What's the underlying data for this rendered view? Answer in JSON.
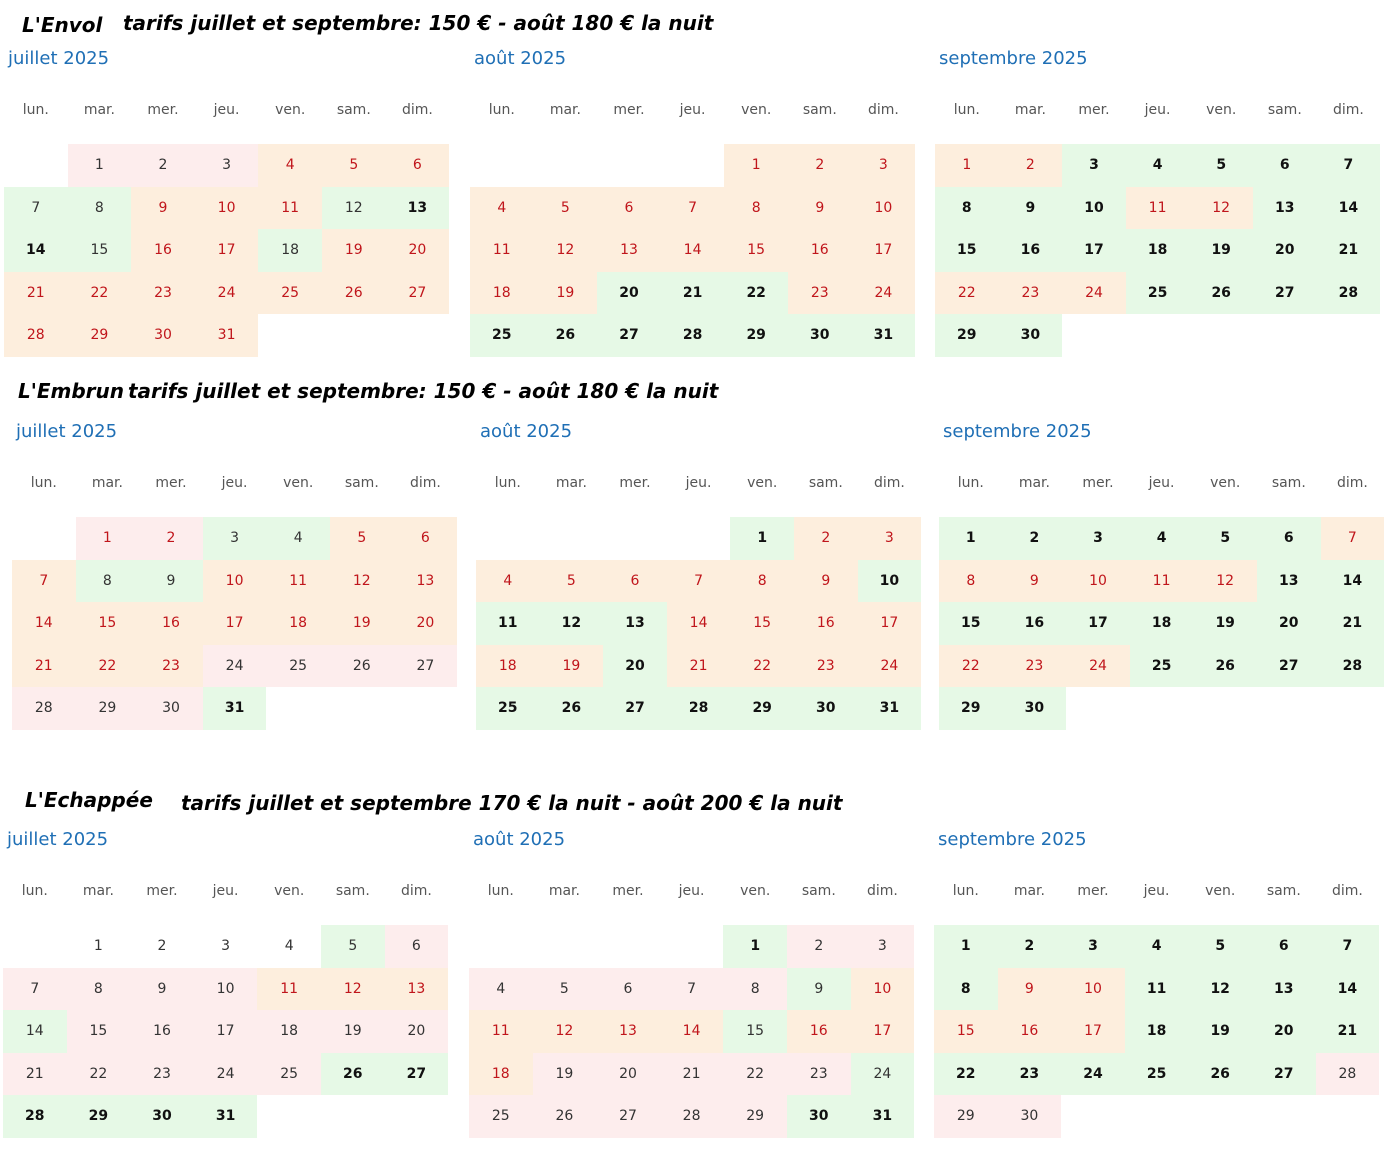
{
  "colors": {
    "green": "#e6f9e6",
    "orange": "#fdeedd",
    "pink": "#fdeded",
    "title_blue": "#1f6fb5",
    "red_text": "#c0151b"
  },
  "weekdays": [
    "lun.",
    "mar.",
    "mer.",
    "jeu.",
    "ven.",
    "sam.",
    "dim."
  ],
  "legend": {
    "g": "green-bold",
    "o": "orange-red",
    "p": "pink",
    "lg": "green-normal",
    "w": "white",
    "rp": "pink-red"
  },
  "properties": [
    {
      "name": "L'Envol",
      "tariff": "tarifs juillet et septembre: 150 € - août 180 € la nuit",
      "months": [
        {
          "title": "juillet 2025",
          "offset": 1,
          "days": 31,
          "states": [
            "p",
            "p",
            "p",
            "o",
            "o",
            "o",
            "lg",
            "lg",
            "o",
            "o",
            "o",
            "lg",
            "g",
            "g",
            "lg",
            "o",
            "o",
            "lg",
            "o",
            "o",
            "o",
            "o",
            "o",
            "o",
            "o",
            "o",
            "o",
            "o",
            "o",
            "o",
            "o"
          ]
        },
        {
          "title": "août 2025",
          "offset": 4,
          "days": 31,
          "states": [
            "o",
            "o",
            "o",
            "o",
            "o",
            "o",
            "o",
            "o",
            "o",
            "o",
            "o",
            "o",
            "o",
            "o",
            "o",
            "o",
            "o",
            "o",
            "o",
            "g",
            "g",
            "g",
            "o",
            "o",
            "g",
            "g",
            "g",
            "g",
            "g",
            "g",
            "g"
          ]
        },
        {
          "title": "septembre 2025",
          "offset": 0,
          "days": 30,
          "states": [
            "o",
            "o",
            "g",
            "g",
            "g",
            "g",
            "g",
            "g",
            "g",
            "g",
            "o",
            "o",
            "g",
            "g",
            "g",
            "g",
            "g",
            "g",
            "g",
            "g",
            "g",
            "o",
            "o",
            "o",
            "g",
            "g",
            "g",
            "g",
            "g",
            "g"
          ]
        }
      ]
    },
    {
      "name": "L'Embrun",
      "tariff": "tarifs juillet et septembre: 150 € - août 180 € la nuit",
      "months": [
        {
          "title": "juillet 2025",
          "offset": 1,
          "days": 31,
          "states": [
            "rp",
            "rp",
            "lg",
            "lg",
            "o",
            "o",
            "o",
            "lg",
            "lg",
            "o",
            "o",
            "o",
            "o",
            "o",
            "o",
            "o",
            "o",
            "o",
            "o",
            "o",
            "o",
            "o",
            "o",
            "p",
            "p",
            "p",
            "p",
            "p",
            "p",
            "p",
            "g"
          ]
        },
        {
          "title": "août 2025",
          "offset": 4,
          "days": 31,
          "states": [
            "g",
            "o",
            "o",
            "o",
            "o",
            "o",
            "o",
            "o",
            "o",
            "g",
            "g",
            "g",
            "g",
            "o",
            "o",
            "o",
            "o",
            "o",
            "o",
            "g",
            "o",
            "o",
            "o",
            "o",
            "g",
            "g",
            "g",
            "g",
            "g",
            "g",
            "g"
          ]
        },
        {
          "title": "septembre 2025",
          "offset": 0,
          "days": 30,
          "states": [
            "g",
            "g",
            "g",
            "g",
            "g",
            "g",
            "o",
            "o",
            "o",
            "o",
            "o",
            "o",
            "g",
            "g",
            "g",
            "g",
            "g",
            "g",
            "g",
            "g",
            "g",
            "o",
            "o",
            "o",
            "g",
            "g",
            "g",
            "g",
            "g",
            "g"
          ]
        }
      ]
    },
    {
      "name": "L'Echappée",
      "tariff": "tarifs juillet et septembre 170 € la nuit - août 200 € la nuit",
      "months": [
        {
          "title": "juillet 2025",
          "offset": 1,
          "days": 31,
          "states": [
            "w",
            "w",
            "w",
            "w",
            "lg",
            "p",
            "p",
            "p",
            "p",
            "p",
            "o",
            "o",
            "o",
            "lg",
            "p",
            "p",
            "p",
            "p",
            "p",
            "p",
            "p",
            "p",
            "p",
            "p",
            "p",
            "g",
            "g",
            "g",
            "g",
            "g",
            "g"
          ]
        },
        {
          "title": "août 2025",
          "offset": 4,
          "days": 31,
          "states": [
            "g",
            "p",
            "p",
            "p",
            "p",
            "p",
            "p",
            "p",
            "lg",
            "o",
            "o",
            "o",
            "o",
            "o",
            "lg",
            "o",
            "o",
            "o",
            "p",
            "p",
            "p",
            "p",
            "p",
            "lg",
            "p",
            "p",
            "p",
            "p",
            "p",
            "g",
            "g"
          ]
        },
        {
          "title": "septembre 2025",
          "offset": 0,
          "days": 30,
          "states": [
            "g",
            "g",
            "g",
            "g",
            "g",
            "g",
            "g",
            "g",
            "o",
            "o",
            "g",
            "g",
            "g",
            "g",
            "o",
            "o",
            "o",
            "g",
            "g",
            "g",
            "g",
            "g",
            "g",
            "g",
            "g",
            "g",
            "g",
            "p",
            "p",
            "p"
          ]
        }
      ]
    }
  ]
}
